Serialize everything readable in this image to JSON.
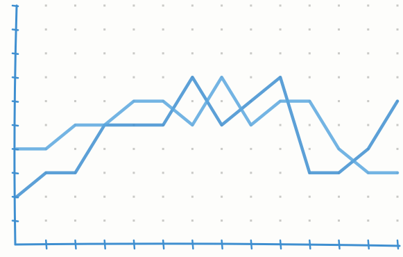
{
  "chart_data": {
    "type": "line",
    "title": "",
    "xlabel": "",
    "ylabel": "",
    "grid": "dotted",
    "legend": "none",
    "x": [
      0,
      1,
      2,
      3,
      4,
      5,
      6,
      7,
      8,
      9,
      10,
      11,
      12,
      13
    ],
    "xlim": [
      0,
      13
    ],
    "ylim": [
      0,
      10
    ],
    "y_ticks": [
      0,
      1,
      2,
      3,
      4,
      5,
      6,
      7,
      8,
      9,
      10
    ],
    "x_ticks": [
      0,
      1,
      2,
      3,
      4,
      5,
      6,
      7,
      8,
      9,
      10,
      11,
      12,
      13
    ],
    "series": [
      {
        "color": "#3f8fd0",
        "values": [
          2.0,
          3.0,
          3.0,
          5.0,
          5.0,
          5.0,
          7.0,
          5.0,
          6.0,
          7.0,
          3.0,
          3.0,
          4.0,
          6.0
        ]
      },
      {
        "color": "#5aa7de",
        "values": [
          4.0,
          4.0,
          5.0,
          5.0,
          6.0,
          6.0,
          5.0,
          7.0,
          5.0,
          6.0,
          6.0,
          4.0,
          3.0,
          3.0
        ]
      }
    ]
  }
}
